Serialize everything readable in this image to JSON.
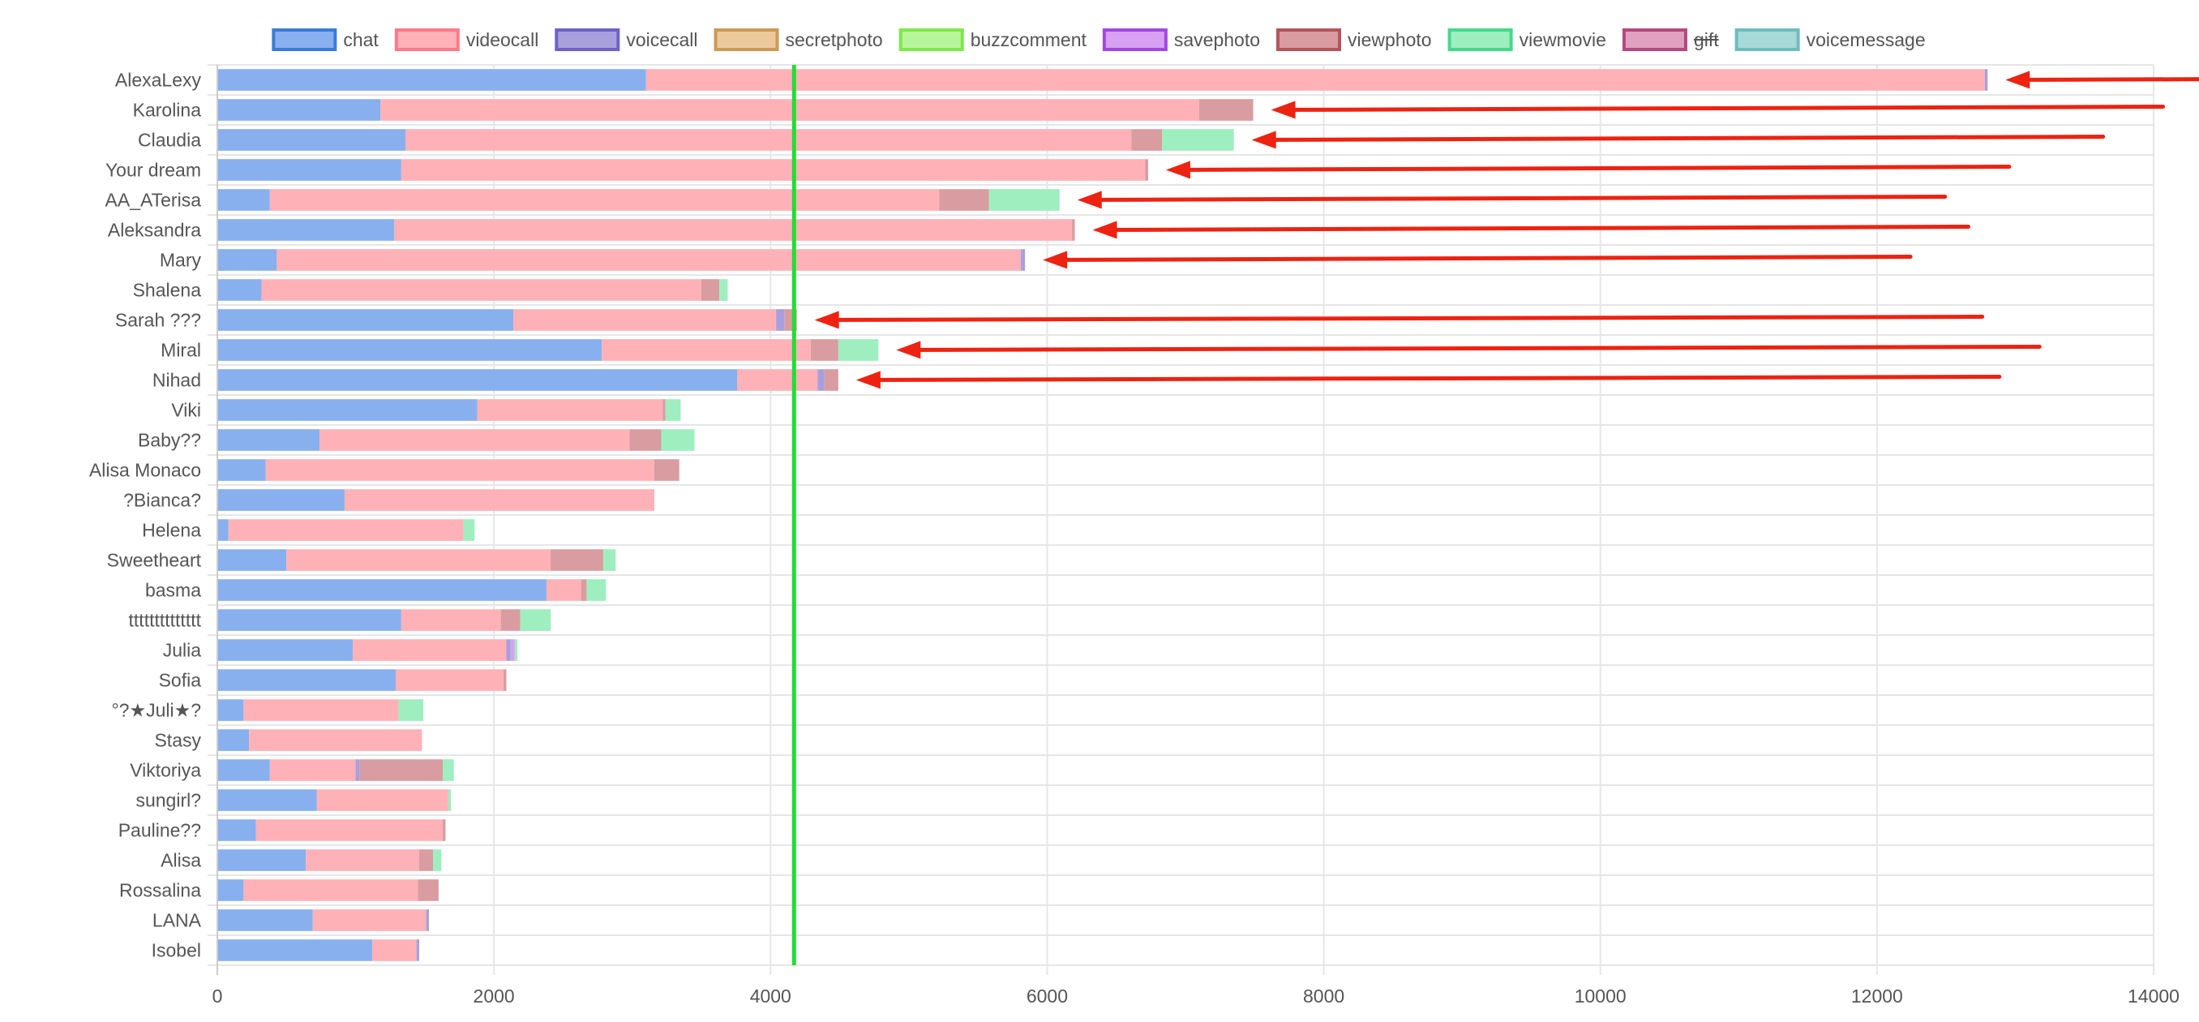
{
  "chart_data": {
    "type": "bar",
    "orientation": "horizontal",
    "stacked": true,
    "categories": [
      "AlexaLexy",
      "Karolina",
      "Claudia",
      "Your dream",
      "AA_ATerisa",
      "Aleksandra",
      "Mary",
      "Shalena",
      "Sarah ???",
      "Miral",
      "Nihad",
      "Viki",
      "Baby??",
      "Alisa Monaco",
      "?Bianca?",
      "Helena",
      "Sweetheart",
      "basma",
      "tttttttttttttt",
      "Julia",
      "Sofia",
      "°?★Juli★?",
      "Stasy",
      "Viktoriya",
      "sungirl?",
      "Pauline??",
      "Alisa",
      "Rossalina",
      "LANA",
      "Isobel"
    ],
    "series": [
      {
        "name": "chat",
        "fill": "#88b0ee",
        "border": "#3b7bd9",
        "hidden": false,
        "values": [
          3100,
          1180,
          1360,
          1330,
          380,
          1280,
          430,
          320,
          2140,
          2780,
          3760,
          1880,
          740,
          350,
          920,
          80,
          500,
          2380,
          1330,
          980,
          1290,
          190,
          230,
          380,
          720,
          280,
          640,
          190,
          690,
          1120
        ]
      },
      {
        "name": "videocall",
        "fill": "#ffb1b8",
        "border": "#ff7a8a",
        "hidden": false,
        "values": [
          9680,
          5920,
          5250,
          5380,
          4840,
          4900,
          5380,
          3180,
          1900,
          1510,
          580,
          1340,
          2240,
          2810,
          2240,
          1700,
          1910,
          250,
          720,
          1110,
          780,
          1120,
          1250,
          620,
          950,
          1350,
          820,
          1260,
          820,
          320
        ]
      },
      {
        "name": "voicecall",
        "fill": "#a8a0dc",
        "border": "#6f61c7",
        "hidden": false,
        "values": [
          20,
          0,
          0,
          0,
          0,
          0,
          30,
          0,
          60,
          0,
          50,
          0,
          0,
          0,
          0,
          0,
          0,
          0,
          0,
          30,
          0,
          0,
          0,
          30,
          0,
          0,
          0,
          0,
          20,
          20
        ]
      },
      {
        "name": "secretphoto",
        "fill": "#ecc99c",
        "border": "#cc9a55",
        "hidden": false,
        "values": [
          0,
          0,
          0,
          0,
          0,
          0,
          0,
          0,
          0,
          0,
          0,
          0,
          0,
          0,
          0,
          0,
          0,
          0,
          0,
          0,
          0,
          0,
          0,
          0,
          0,
          0,
          0,
          0,
          0,
          0
        ]
      },
      {
        "name": "buzzcomment",
        "fill": "#b8f59a",
        "border": "#7ee84b",
        "hidden": false,
        "values": [
          0,
          0,
          0,
          0,
          0,
          0,
          0,
          0,
          0,
          0,
          0,
          0,
          0,
          0,
          0,
          0,
          0,
          0,
          0,
          0,
          0,
          0,
          0,
          0,
          0,
          0,
          0,
          0,
          0,
          0
        ]
      },
      {
        "name": "savephoto",
        "fill": "#d7a0f2",
        "border": "#a248e0",
        "hidden": false,
        "values": [
          0,
          0,
          0,
          0,
          0,
          0,
          0,
          0,
          0,
          0,
          0,
          0,
          0,
          0,
          0,
          0,
          0,
          0,
          0,
          30,
          0,
          0,
          0,
          0,
          0,
          0,
          0,
          0,
          0,
          0
        ]
      },
      {
        "name": "viewphoto",
        "fill": "#d99ca0",
        "border": "#b5545c",
        "hidden": false,
        "values": [
          0,
          390,
          220,
          20,
          360,
          20,
          0,
          130,
          90,
          200,
          100,
          20,
          230,
          180,
          0,
          0,
          380,
          40,
          140,
          0,
          20,
          0,
          0,
          600,
          0,
          20,
          100,
          150,
          0,
          0
        ]
      },
      {
        "name": "viewmovie",
        "fill": "#9eeec0",
        "border": "#45d98a",
        "hidden": false,
        "values": [
          0,
          0,
          520,
          0,
          510,
          0,
          0,
          60,
          0,
          290,
          0,
          110,
          240,
          0,
          0,
          80,
          90,
          140,
          220,
          20,
          0,
          180,
          0,
          80,
          20,
          0,
          60,
          0,
          0,
          0
        ]
      },
      {
        "name": "gift",
        "fill": "#e0a0c0",
        "border": "#b5487e",
        "hidden": true,
        "values": [
          0,
          0,
          0,
          0,
          0,
          0,
          0,
          0,
          0,
          0,
          0,
          0,
          0,
          0,
          0,
          0,
          0,
          0,
          0,
          0,
          0,
          0,
          0,
          0,
          0,
          0,
          0,
          0,
          0,
          0
        ]
      },
      {
        "name": "voicemessage",
        "fill": "#a8d8d8",
        "border": "#6fbcbc",
        "hidden": false,
        "values": [
          0,
          0,
          0,
          0,
          0,
          0,
          0,
          0,
          0,
          0,
          0,
          0,
          0,
          0,
          0,
          0,
          0,
          0,
          0,
          0,
          0,
          0,
          0,
          0,
          0,
          0,
          0,
          0,
          0,
          0
        ]
      }
    ],
    "xlim": [
      0,
      14000
    ],
    "x_ticks": [
      0,
      2000,
      4000,
      6000,
      8000,
      10000,
      12000,
      14000
    ],
    "grid": true,
    "legend": "top",
    "reference_line": {
      "x": 4170,
      "color": "#22dd33"
    },
    "annotations": [
      {
        "type": "arrow",
        "category": "AlexaLexy",
        "color": "#ee2211"
      },
      {
        "type": "arrow",
        "category": "Karolina",
        "color": "#ee2211"
      },
      {
        "type": "arrow",
        "category": "Claudia",
        "color": "#ee2211"
      },
      {
        "type": "arrow",
        "category": "Your dream",
        "color": "#ee2211"
      },
      {
        "type": "arrow",
        "category": "AA_ATerisa",
        "color": "#ee2211"
      },
      {
        "type": "arrow",
        "category": "Aleksandra",
        "color": "#ee2211"
      },
      {
        "type": "arrow",
        "category": "Mary",
        "color": "#ee2211"
      },
      {
        "type": "arrow",
        "category": "Sarah ???",
        "color": "#ee2211"
      },
      {
        "type": "arrow",
        "category": "Miral",
        "color": "#ee2211"
      },
      {
        "type": "arrow",
        "category": "Nihad",
        "color": "#ee2211"
      }
    ],
    "colors": {
      "grid": "#e6e6e6",
      "axis": "#888888",
      "text": "#555555"
    }
  }
}
